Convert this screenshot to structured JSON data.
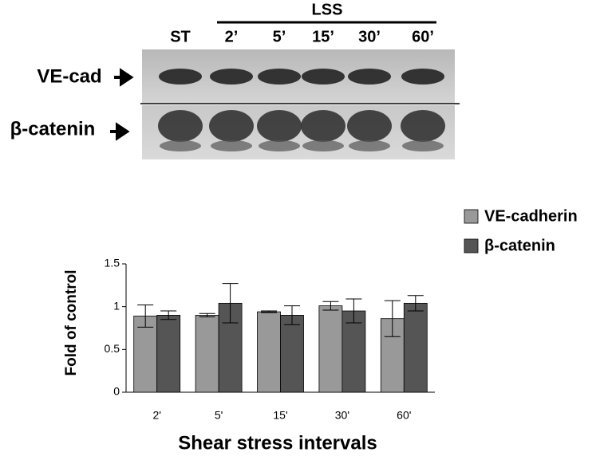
{
  "blot": {
    "group_label": "LSS",
    "lanes": [
      "ST",
      "2’",
      "5’",
      "15’",
      "30’",
      "60’"
    ],
    "rows": [
      "VE-cad",
      "β-catenin"
    ]
  },
  "chart_data": {
    "type": "bar",
    "y_label": "Fold of control",
    "x_label": "Shear stress intervals",
    "categories": [
      "2'",
      "5'",
      "15'",
      "30'",
      "60'"
    ],
    "series": [
      {
        "name": "VE-cadherin",
        "color": "#999999",
        "values": [
          0.89,
          0.9,
          0.94,
          1.01,
          0.86
        ],
        "errors": [
          0.13,
          0.02,
          0.01,
          0.05,
          0.21
        ]
      },
      {
        "name": "β-catenin",
        "color": "#555555",
        "values": [
          0.9,
          1.04,
          0.9,
          0.95,
          1.04
        ],
        "errors": [
          0.05,
          0.23,
          0.11,
          0.14,
          0.09
        ]
      }
    ],
    "ylim": [
      0,
      1.5
    ],
    "yticks": [
      0,
      0.5,
      1,
      1.5
    ],
    "grid": false,
    "legend": "top-right"
  }
}
